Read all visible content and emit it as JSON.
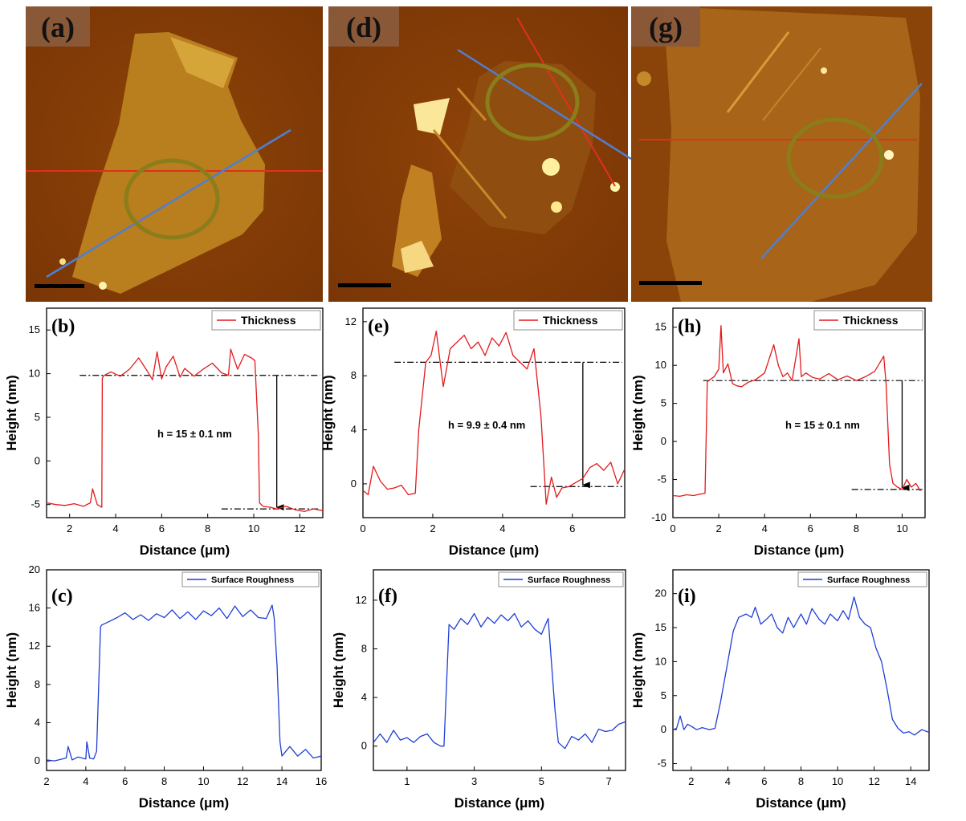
{
  "afm_images": [
    {
      "label": "(a)"
    },
    {
      "label": "(d)"
    },
    {
      "label": "(g)"
    }
  ],
  "colors": {
    "thickness": "#e31a1c",
    "roughness": "#1f3fd6",
    "circle": "#8b7d1a",
    "blue_line": "#4f7fd0",
    "red_line": "#e0301e"
  },
  "chart_data": [
    {
      "id": "b",
      "type": "line",
      "label": "(b)",
      "xlabel": "Distance (μm)",
      "ylabel": "Height (nm)",
      "xlim": [
        1,
        13
      ],
      "ylim": [
        -6.5,
        17.5
      ],
      "xticks": [
        2,
        4,
        6,
        8,
        10,
        12
      ],
      "yticks": [
        -5,
        0,
        5,
        10,
        15
      ],
      "legend": "Thickness",
      "annotation": "h = 15 ± 0.1 nm",
      "series": [
        {
          "name": "Thickness",
          "color": "#e31a1c",
          "x": [
            1,
            1.4,
            1.8,
            2.2,
            2.6,
            2.9,
            3.0,
            3.2,
            3.4,
            3.42,
            3.5,
            3.8,
            4.2,
            4.6,
            5.0,
            5.4,
            5.6,
            5.8,
            6.0,
            6.2,
            6.5,
            6.8,
            7.0,
            7.4,
            7.8,
            8.2,
            8.6,
            8.9,
            9.0,
            9.3,
            9.6,
            9.9,
            10.05,
            10.2,
            10.25,
            10.4,
            10.7,
            11.0,
            11.4,
            11.8,
            12.2,
            12.6,
            13
          ],
          "y": [
            -4.8,
            -5.0,
            -5.1,
            -4.9,
            -5.2,
            -4.8,
            -3.2,
            -5.0,
            -5.3,
            9.5,
            9.8,
            10.2,
            9.7,
            10.5,
            11.8,
            10.2,
            9.3,
            12.5,
            9.4,
            10.8,
            12.0,
            9.6,
            10.6,
            9.7,
            10.5,
            11.2,
            10.1,
            9.8,
            12.8,
            10.5,
            12.2,
            11.8,
            11.5,
            3.0,
            -4.8,
            -5.2,
            -5.3,
            -5.5,
            -5.2,
            -5.6,
            -5.8,
            -5.5,
            -5.7
          ]
        }
      ],
      "refs": {
        "upper": 9.8,
        "lower": -5.5,
        "arrow_x": 11
      }
    },
    {
      "id": "c",
      "type": "line",
      "label": "(c)",
      "xlabel": "Distance (μm)",
      "ylabel": "Height (nm)",
      "xlim": [
        2,
        16
      ],
      "ylim": [
        -1,
        20
      ],
      "xticks": [
        2,
        4,
        6,
        8,
        10,
        12,
        14,
        16
      ],
      "yticks": [
        0,
        4,
        8,
        12,
        16,
        20
      ],
      "legend": "Surface Roughness",
      "series": [
        {
          "name": "Surface Roughness",
          "color": "#1f3fd6",
          "x": [
            2,
            2.4,
            2.8,
            3.0,
            3.1,
            3.3,
            3.6,
            4.0,
            4.05,
            4.2,
            4.4,
            4.55,
            4.75,
            4.8,
            5.2,
            5.6,
            6.0,
            6.4,
            6.8,
            7.2,
            7.6,
            8.0,
            8.4,
            8.8,
            9.2,
            9.6,
            10.0,
            10.4,
            10.8,
            11.2,
            11.6,
            12.0,
            12.4,
            12.8,
            13.2,
            13.5,
            13.6,
            13.75,
            13.9,
            14.0,
            14.4,
            14.8,
            15.2,
            15.6,
            16
          ],
          "y": [
            0.1,
            0.0,
            0.2,
            0.3,
            1.5,
            0.1,
            0.4,
            0.2,
            2.0,
            0.3,
            0.2,
            1.0,
            14.0,
            14.2,
            14.6,
            15.0,
            15.5,
            14.8,
            15.3,
            14.7,
            15.4,
            15.0,
            15.8,
            14.9,
            15.6,
            14.8,
            15.7,
            15.2,
            16.0,
            14.9,
            16.2,
            15.1,
            15.8,
            15.0,
            14.9,
            16.3,
            15.0,
            10.0,
            2.0,
            0.5,
            1.5,
            0.5,
            1.2,
            0.3,
            0.5
          ]
        }
      ]
    },
    {
      "id": "e",
      "type": "line",
      "label": "(e)",
      "xlabel": "Distance (μm)",
      "ylabel": "Height (nm)",
      "xlim": [
        0,
        7.5
      ],
      "ylim": [
        -2.5,
        13
      ],
      "xticks": [
        0,
        2,
        4,
        6
      ],
      "yticks": [
        0,
        4,
        8,
        12
      ],
      "legend": "Thickness",
      "annotation": "h = 9.9 ± 0.4 nm",
      "series": [
        {
          "name": "Thickness",
          "color": "#e31a1c",
          "x": [
            0,
            0.15,
            0.3,
            0.5,
            0.7,
            0.9,
            1.1,
            1.3,
            1.5,
            1.6,
            1.8,
            1.95,
            2.1,
            2.3,
            2.5,
            2.7,
            2.9,
            3.1,
            3.3,
            3.5,
            3.7,
            3.9,
            4.1,
            4.3,
            4.5,
            4.7,
            4.9,
            5.1,
            5.25,
            5.4,
            5.55,
            5.7,
            5.9,
            6.1,
            6.3,
            6.5,
            6.7,
            6.9,
            7.1,
            7.3,
            7.5
          ],
          "y": [
            -0.5,
            -0.8,
            1.3,
            0.2,
            -0.4,
            -0.3,
            -0.1,
            -0.8,
            -0.7,
            4.0,
            9.0,
            9.5,
            11.3,
            7.2,
            10.0,
            10.5,
            11.0,
            10.0,
            10.5,
            9.5,
            10.8,
            10.2,
            11.2,
            9.5,
            9.0,
            8.5,
            10.0,
            5.0,
            -1.5,
            0.5,
            -1.0,
            -0.3,
            -0.2,
            0.1,
            0.4,
            1.2,
            1.5,
            1.0,
            1.6,
            0.0,
            1.1
          ]
        }
      ],
      "refs": {
        "upper": 9.0,
        "lower": -0.2,
        "arrow_x": 6.3
      }
    },
    {
      "id": "f",
      "type": "line",
      "label": "(f)",
      "xlabel": "Distance (μm)",
      "ylabel": "Height (nm)",
      "xlim": [
        0,
        7.5
      ],
      "ylim": [
        -2,
        14.5
      ],
      "xticks": [
        1,
        3,
        5,
        7
      ],
      "yticks": [
        0,
        4,
        8,
        12
      ],
      "legend": "Surface Roughness",
      "series": [
        {
          "name": "Surface Roughness",
          "color": "#1f3fd6",
          "x": [
            0,
            0.2,
            0.4,
            0.6,
            0.8,
            1.0,
            1.2,
            1.4,
            1.6,
            1.8,
            2.0,
            2.1,
            2.25,
            2.4,
            2.6,
            2.8,
            3.0,
            3.2,
            3.4,
            3.6,
            3.8,
            4.0,
            4.2,
            4.4,
            4.6,
            4.8,
            5.0,
            5.2,
            5.4,
            5.5,
            5.7,
            5.9,
            6.1,
            6.3,
            6.5,
            6.7,
            6.9,
            7.1,
            7.3,
            7.5
          ],
          "y": [
            0.3,
            1.0,
            0.3,
            1.3,
            0.5,
            0.7,
            0.3,
            0.8,
            1.0,
            0.3,
            0.0,
            0.0,
            10.0,
            9.6,
            10.5,
            10.0,
            10.9,
            9.8,
            10.6,
            10.1,
            10.8,
            10.3,
            10.9,
            9.8,
            10.3,
            9.6,
            9.2,
            10.5,
            3.0,
            0.3,
            -0.2,
            0.8,
            0.5,
            1.0,
            0.3,
            1.4,
            1.2,
            1.3,
            1.8,
            2.0
          ]
        }
      ]
    },
    {
      "id": "h",
      "type": "line",
      "label": "(h)",
      "xlabel": "Distance (μm)",
      "ylabel": "Height (nm)",
      "xlim": [
        0,
        11
      ],
      "ylim": [
        -10,
        17.5
      ],
      "xticks": [
        0,
        2,
        4,
        6,
        8,
        10
      ],
      "yticks": [
        -10,
        -5,
        0,
        5,
        10,
        15
      ],
      "legend": "Thickness",
      "annotation": "h = 15 ± 0.1 nm",
      "series": [
        {
          "name": "Thickness",
          "color": "#e31a1c",
          "x": [
            0,
            0.3,
            0.6,
            0.9,
            1.2,
            1.4,
            1.5,
            1.6,
            1.8,
            2.0,
            2.1,
            2.2,
            2.4,
            2.6,
            2.8,
            3.0,
            3.3,
            3.6,
            4.0,
            4.4,
            4.6,
            4.8,
            5.0,
            5.2,
            5.5,
            5.6,
            5.8,
            6.1,
            6.4,
            6.8,
            7.2,
            7.6,
            8.0,
            8.4,
            8.8,
            9.2,
            9.3,
            9.45,
            9.6,
            9.8,
            10.0,
            10.2,
            10.4,
            10.6,
            10.8
          ],
          "y": [
            -7.1,
            -7.2,
            -7.0,
            -7.1,
            -6.9,
            -6.8,
            7.8,
            8.1,
            8.5,
            9.5,
            15.2,
            9.0,
            10.2,
            7.6,
            7.3,
            7.2,
            7.8,
            8.1,
            9.0,
            12.7,
            10.0,
            8.5,
            9.0,
            8.0,
            13.5,
            8.5,
            9.0,
            8.4,
            8.2,
            8.9,
            8.1,
            8.6,
            8.0,
            8.5,
            9.2,
            11.2,
            7.5,
            -3.0,
            -5.5,
            -6.0,
            -6.3,
            -5.0,
            -6.0,
            -5.5,
            -6.5
          ]
        }
      ],
      "refs": {
        "upper": 8.0,
        "lower": -6.3,
        "arrow_x": 10
      }
    },
    {
      "id": "i",
      "type": "line",
      "label": "(i)",
      "xlabel": "Distance (μm)",
      "ylabel": "Height (nm)",
      "xlim": [
        1,
        15
      ],
      "ylim": [
        -6,
        23.5
      ],
      "xticks": [
        2,
        4,
        6,
        8,
        10,
        12,
        14
      ],
      "yticks": [
        -5,
        0,
        5,
        10,
        15,
        20
      ],
      "legend": "Surface Roughness",
      "series": [
        {
          "name": "Surface Roughness",
          "color": "#1f3fd6",
          "x": [
            1,
            1.2,
            1.4,
            1.6,
            1.8,
            2.0,
            2.3,
            2.6,
            3.0,
            3.3,
            3.6,
            4.0,
            4.3,
            4.6,
            5.0,
            5.3,
            5.5,
            5.8,
            6.1,
            6.4,
            6.7,
            7.0,
            7.3,
            7.6,
            8.0,
            8.3,
            8.6,
            9.0,
            9.3,
            9.6,
            10.0,
            10.3,
            10.6,
            10.9,
            11.2,
            11.5,
            11.8,
            12.1,
            12.4,
            12.7,
            13.0,
            13.3,
            13.6,
            13.9,
            14.2,
            14.6,
            15.0
          ],
          "y": [
            0,
            0.2,
            2.0,
            0,
            0.8,
            0.5,
            0,
            0.3,
            0,
            0.2,
            4.0,
            10.0,
            14.5,
            16.5,
            17.0,
            16.5,
            18.0,
            15.5,
            16.2,
            17.0,
            15.0,
            14.2,
            16.5,
            15.0,
            17.0,
            15.5,
            17.8,
            16.2,
            15.5,
            17.0,
            16.0,
            17.5,
            16.2,
            19.5,
            16.5,
            15.5,
            15.0,
            12.0,
            10.0,
            6.0,
            1.5,
            0.2,
            -0.5,
            -0.3,
            -0.8,
            0.0,
            -0.4
          ]
        }
      ]
    }
  ]
}
